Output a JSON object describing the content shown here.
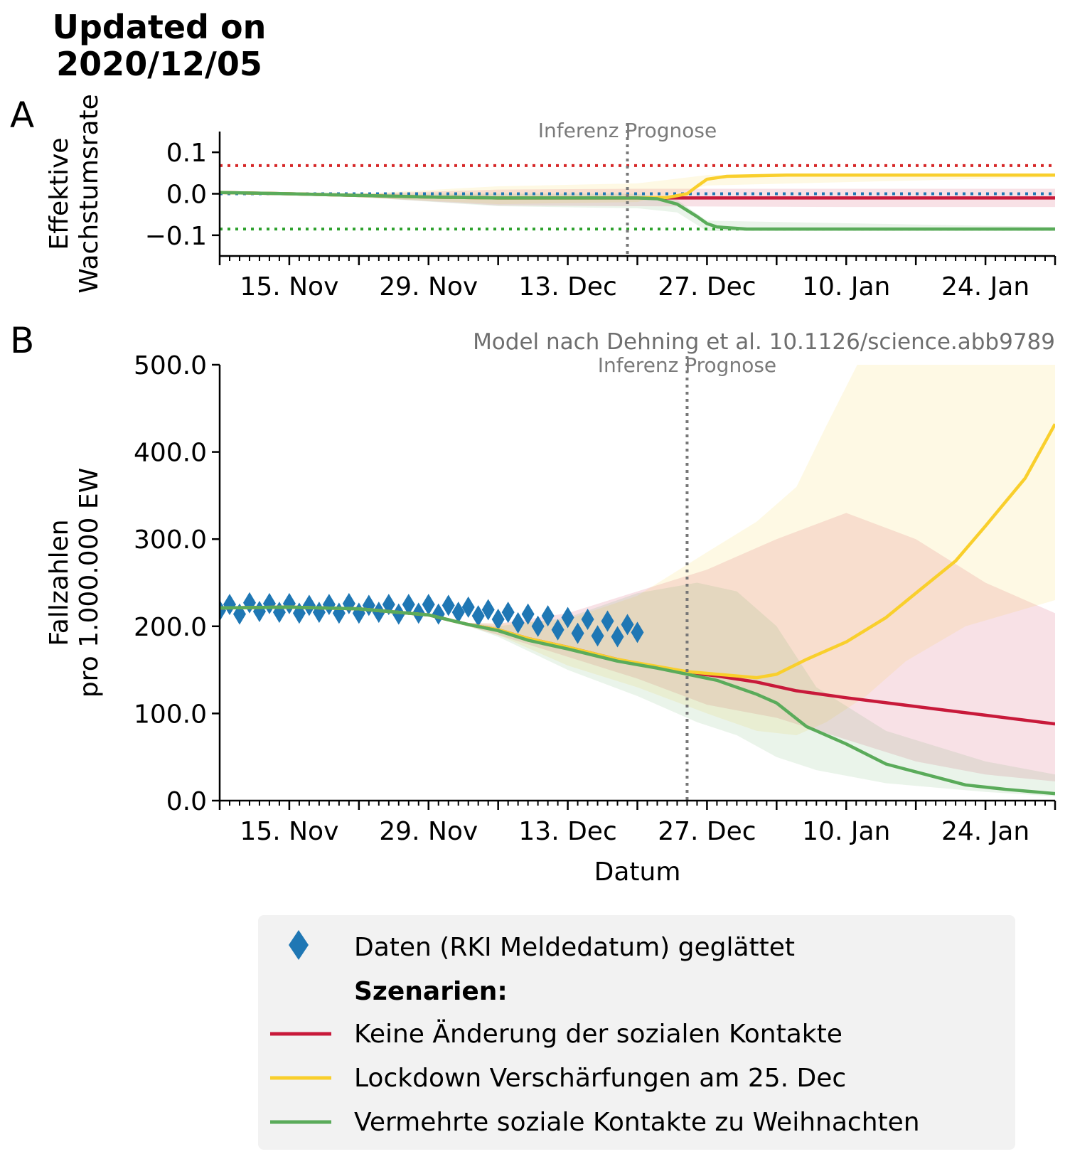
{
  "header": {
    "updated_line1": "Updated on",
    "updated_line2": "2020/12/05"
  },
  "panels": {
    "a_label": "A",
    "b_label": "B"
  },
  "colors": {
    "data": "#1f77b4",
    "keine": "#c8193a",
    "lockdown": "#f9cf2c",
    "vermehrt": "#5aab5a",
    "ref_red": "#d62728",
    "ref_blue": "#1f77b4",
    "ref_green": "#2ca02c",
    "divider": "#777777",
    "legend_bg": "#f2f2f2"
  },
  "chart_data": [
    {
      "type": "line",
      "panel": "A",
      "ylabel_line1": "Effektive",
      "ylabel_line2": "Wachstumsrate",
      "annotation": "Inferenz Prognose",
      "xlim": [
        "2020-11-08",
        "2021-01-31"
      ],
      "ylim": [
        -0.15,
        0.15
      ],
      "yticks": [
        0.1,
        0.0,
        -0.1
      ],
      "ytick_labels": [
        "0.1",
        "0.0",
        "−0.1"
      ],
      "xticks": [
        "2020-11-15",
        "2020-11-29",
        "2020-12-13",
        "2020-12-27",
        "2021-01-10",
        "2021-01-24"
      ],
      "xtick_labels": [
        "15. Nov",
        "29. Nov",
        "13. Dec",
        "27. Dec",
        "10. Jan",
        "24. Jan"
      ],
      "divider_date": "2020-12-19",
      "reference_lines": [
        {
          "y": 0.068,
          "color": "#d62728"
        },
        {
          "y": 0.0,
          "color": "#1f77b4"
        },
        {
          "y": -0.085,
          "color": "#2ca02c"
        }
      ],
      "series": [
        {
          "key": "keine",
          "color": "#c8193a",
          "points": [
            [
              "2020-11-08",
              0.003
            ],
            [
              "2020-11-15",
              0.0
            ],
            [
              "2020-11-22",
              -0.004
            ],
            [
              "2020-11-29",
              -0.008
            ],
            [
              "2020-12-06",
              -0.01
            ],
            [
              "2020-12-13",
              -0.01
            ],
            [
              "2020-12-20",
              -0.01
            ],
            [
              "2020-12-27",
              -0.01
            ],
            [
              "2021-01-10",
              -0.01
            ],
            [
              "2021-01-31",
              -0.01
            ]
          ],
          "band": [
            [
              "2020-11-08",
              0.004,
              0.002
            ],
            [
              "2020-11-22",
              0.0,
              -0.008
            ],
            [
              "2020-12-06",
              0.01,
              -0.028
            ],
            [
              "2020-12-20",
              0.012,
              -0.03
            ],
            [
              "2021-01-10",
              0.012,
              -0.032
            ],
            [
              "2021-01-31",
              0.012,
              -0.032
            ]
          ]
        },
        {
          "key": "lockdown",
          "color": "#f9cf2c",
          "points": [
            [
              "2020-11-08",
              0.003
            ],
            [
              "2020-11-15",
              0.0
            ],
            [
              "2020-11-22",
              -0.004
            ],
            [
              "2020-11-29",
              -0.008
            ],
            [
              "2020-12-06",
              -0.01
            ],
            [
              "2020-12-13",
              -0.01
            ],
            [
              "2020-12-20",
              -0.01
            ],
            [
              "2020-12-23",
              -0.009
            ],
            [
              "2020-12-25",
              0.0
            ],
            [
              "2020-12-26",
              0.018
            ],
            [
              "2020-12-27",
              0.035
            ],
            [
              "2020-12-29",
              0.042
            ],
            [
              "2021-01-04",
              0.045
            ],
            [
              "2021-01-31",
              0.045
            ]
          ],
          "band": [
            [
              "2020-11-08",
              0.004,
              0.002
            ],
            [
              "2020-11-22",
              0.0,
              -0.008
            ],
            [
              "2020-12-06",
              0.018,
              -0.025
            ],
            [
              "2020-12-20",
              0.025,
              -0.02
            ],
            [
              "2020-12-27",
              0.045,
              0.02
            ],
            [
              "2021-01-31",
              0.048,
              0.04
            ]
          ]
        },
        {
          "key": "vermehrt",
          "color": "#5aab5a",
          "points": [
            [
              "2020-11-08",
              0.003
            ],
            [
              "2020-11-15",
              0.0
            ],
            [
              "2020-11-22",
              -0.004
            ],
            [
              "2020-11-29",
              -0.008
            ],
            [
              "2020-12-06",
              -0.01
            ],
            [
              "2020-12-13",
              -0.01
            ],
            [
              "2020-12-20",
              -0.01
            ],
            [
              "2020-12-22",
              -0.012
            ],
            [
              "2020-12-24",
              -0.025
            ],
            [
              "2020-12-26",
              -0.055
            ],
            [
              "2020-12-27",
              -0.072
            ],
            [
              "2020-12-28",
              -0.08
            ],
            [
              "2020-12-31",
              -0.085
            ],
            [
              "2021-01-31",
              -0.085
            ]
          ],
          "band": [
            [
              "2020-11-08",
              0.004,
              0.002
            ],
            [
              "2020-11-22",
              0.0,
              -0.008
            ],
            [
              "2020-12-06",
              0.0,
              -0.03
            ],
            [
              "2020-12-20",
              0.0,
              -0.035
            ],
            [
              "2020-12-24",
              -0.015,
              -0.045
            ],
            [
              "2020-12-27",
              -0.065,
              -0.09
            ],
            [
              "2021-01-31",
              -0.08,
              -0.09
            ]
          ]
        }
      ]
    },
    {
      "type": "line",
      "panel": "B",
      "title_note": "Model nach Dehning et al. 10.1126/science.abb9789",
      "annotation": "Inferenz Prognose",
      "xlabel": "Datum",
      "ylabel_line1": "Fallzahlen",
      "ylabel_line2": "pro 1.000.000 EW",
      "xlim": [
        "2020-11-08",
        "2021-01-31"
      ],
      "ylim": [
        0,
        500
      ],
      "yticks": [
        0,
        100,
        200,
        300,
        400,
        500
      ],
      "ytick_labels": [
        "0.0",
        "100.0",
        "200.0",
        "300.0",
        "400.0",
        "500.0"
      ],
      "xticks": [
        "2020-11-15",
        "2020-11-29",
        "2020-12-13",
        "2020-12-27",
        "2021-01-10",
        "2021-01-24"
      ],
      "xtick_labels": [
        "15. Nov",
        "29. Nov",
        "13. Dec",
        "27. Dec",
        "10. Jan",
        "24. Jan"
      ],
      "divider_date": "2020-12-25",
      "observed": {
        "key": "data",
        "start_date": "2020-11-08",
        "values": [
          218,
          225,
          214,
          227,
          217,
          226,
          216,
          226,
          215,
          224,
          216,
          225,
          215,
          226,
          215,
          224,
          216,
          225,
          214,
          225,
          215,
          225,
          214,
          224,
          216,
          222,
          212,
          219,
          208,
          216,
          204,
          214,
          200,
          212,
          196,
          210,
          192,
          208,
          189,
          206,
          188,
          202,
          193
        ]
      },
      "series": [
        {
          "key": "keine",
          "color": "#c8193a",
          "points": [
            [
              "2020-11-08",
              221
            ],
            [
              "2020-11-15",
              222
            ],
            [
              "2020-11-22",
              220
            ],
            [
              "2020-11-29",
              213
            ],
            [
              "2020-12-03",
              202
            ],
            [
              "2020-12-06",
              196
            ],
            [
              "2020-12-09",
              186
            ],
            [
              "2020-12-13",
              176
            ],
            [
              "2020-12-18",
              162
            ],
            [
              "2020-12-22",
              153
            ],
            [
              "2020-12-25",
              147
            ],
            [
              "2020-12-28",
              143
            ],
            [
              "2021-01-01",
              136
            ],
            [
              "2021-01-05",
              126
            ],
            [
              "2021-01-10",
              118
            ],
            [
              "2021-01-17",
              108
            ],
            [
              "2021-01-24",
              98
            ],
            [
              "2021-01-31",
              88
            ]
          ],
          "band": [
            [
              "2020-12-03",
              204,
              200
            ],
            [
              "2020-12-06",
              203,
              190
            ],
            [
              "2020-12-13",
              215,
              165
            ],
            [
              "2020-12-20",
              240,
              140
            ],
            [
              "2020-12-27",
              265,
              110
            ],
            [
              "2021-01-03",
              300,
              95
            ],
            [
              "2021-01-10",
              330,
              70
            ],
            [
              "2021-01-17",
              300,
              45
            ],
            [
              "2021-01-24",
              250,
              30
            ],
            [
              "2021-01-31",
              215,
              22
            ]
          ]
        },
        {
          "key": "lockdown",
          "color": "#f9cf2c",
          "points": [
            [
              "2020-11-08",
              221
            ],
            [
              "2020-11-15",
              222
            ],
            [
              "2020-11-22",
              220
            ],
            [
              "2020-11-29",
              213
            ],
            [
              "2020-12-03",
              202
            ],
            [
              "2020-12-06",
              196
            ],
            [
              "2020-12-09",
              186
            ],
            [
              "2020-12-13",
              176
            ],
            [
              "2020-12-18",
              162
            ],
            [
              "2020-12-22",
              154
            ],
            [
              "2020-12-25",
              148
            ],
            [
              "2020-12-28",
              145
            ],
            [
              "2021-01-01",
              141
            ],
            [
              "2021-01-03",
              145
            ],
            [
              "2021-01-06",
              162
            ],
            [
              "2021-01-10",
              182
            ],
            [
              "2021-01-14",
              210
            ],
            [
              "2021-01-17",
              238
            ],
            [
              "2021-01-21",
              275
            ],
            [
              "2021-01-24",
              315
            ],
            [
              "2021-01-28",
              370
            ],
            [
              "2021-01-31",
              432
            ]
          ],
          "band": [
            [
              "2020-12-03",
              204,
              200
            ],
            [
              "2020-12-06",
              203,
              190
            ],
            [
              "2020-12-13",
              208,
              155
            ],
            [
              "2020-12-20",
              235,
              130
            ],
            [
              "2020-12-27",
              285,
              100
            ],
            [
              "2021-01-01",
              320,
              80
            ],
            [
              "2021-01-05",
              360,
              75
            ],
            [
              "2021-01-08",
              430,
              90
            ],
            [
              "2021-01-12",
              520,
              120
            ],
            [
              "2021-01-16",
              560,
              160
            ],
            [
              "2021-01-22",
              560,
              200
            ],
            [
              "2021-01-31",
              560,
              230
            ]
          ]
        },
        {
          "key": "vermehrt",
          "color": "#5aab5a",
          "points": [
            [
              "2020-11-08",
              221
            ],
            [
              "2020-11-15",
              222
            ],
            [
              "2020-11-22",
              220
            ],
            [
              "2020-11-29",
              213
            ],
            [
              "2020-12-03",
              202
            ],
            [
              "2020-12-06",
              195
            ],
            [
              "2020-12-09",
              184
            ],
            [
              "2020-12-13",
              174
            ],
            [
              "2020-12-18",
              160
            ],
            [
              "2020-12-22",
              152
            ],
            [
              "2020-12-25",
              145
            ],
            [
              "2020-12-28",
              138
            ],
            [
              "2021-01-01",
              122
            ],
            [
              "2021-01-03",
              112
            ],
            [
              "2021-01-06",
              85
            ],
            [
              "2021-01-10",
              65
            ],
            [
              "2021-01-14",
              42
            ],
            [
              "2021-01-18",
              30
            ],
            [
              "2021-01-22",
              18
            ],
            [
              "2021-01-26",
              13
            ],
            [
              "2021-01-31",
              8
            ]
          ],
          "band": [
            [
              "2020-12-03",
              204,
              200
            ],
            [
              "2020-12-06",
              200,
              188
            ],
            [
              "2020-12-13",
              210,
              150
            ],
            [
              "2020-12-20",
              238,
              120
            ],
            [
              "2020-12-26",
              250,
              90
            ],
            [
              "2020-12-30",
              240,
              75
            ],
            [
              "2021-01-03",
              200,
              50
            ],
            [
              "2021-01-07",
              130,
              35
            ],
            [
              "2021-01-14",
              80,
              20
            ],
            [
              "2021-01-24",
              45,
              10
            ],
            [
              "2021-01-31",
              30,
              5
            ]
          ]
        }
      ]
    }
  ],
  "legend": {
    "data_label": "Daten (RKI Meldedatum) geglättet",
    "header": "Szenarien:",
    "keine_label": "Keine Änderung der sozialen Kontakte",
    "lockdown_label": "Lockdown Verschärfungen am 25. Dec",
    "vermehrt_label": "Vermehrte soziale Kontakte zu Weihnachten"
  }
}
